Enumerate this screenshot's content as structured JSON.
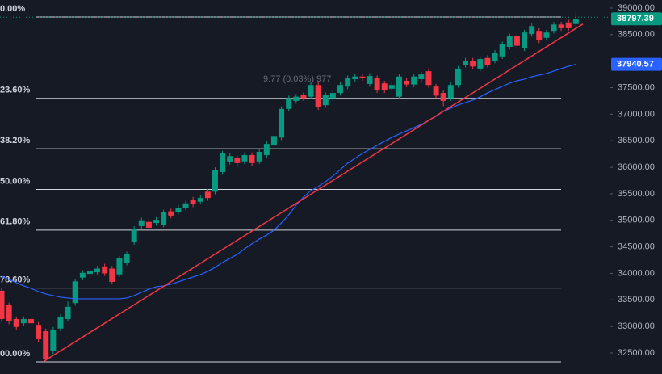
{
  "chart_data": {
    "type": "candlestick",
    "colors": {
      "up": "#089981",
      "down": "#f23645",
      "ma": "#2962ff",
      "trend": "#f23645",
      "fib": "#d1d4dc"
    },
    "ylim": [
      32104,
      39152
    ],
    "yticks": [
      {
        "value": 39000,
        "label": "39000.00"
      },
      {
        "value": 38500,
        "label": "38500.00"
      },
      {
        "value": 37500,
        "label": "37500.00"
      },
      {
        "value": 37000,
        "label": "37000.00"
      },
      {
        "value": 36500,
        "label": "36500.00"
      },
      {
        "value": 36000,
        "label": "36000.00"
      },
      {
        "value": 35500,
        "label": "35500.00"
      },
      {
        "value": 35000,
        "label": "35000.00"
      },
      {
        "value": 34500,
        "label": "34500.00"
      },
      {
        "value": 34000,
        "label": "34000.00"
      },
      {
        "value": 33500,
        "label": "33500.00"
      },
      {
        "value": 33000,
        "label": "33000.00"
      },
      {
        "value": 32500,
        "label": "32500.00"
      }
    ],
    "open": [
      33673,
      33400,
      33140,
      33060,
      33140,
      33030,
      32910,
      32530,
      32960,
      33140,
      33440,
      33920,
      33990,
      34020,
      34130,
      34090,
      33980,
      34200,
      34590,
      34890,
      34970,
      34950,
      34920,
      35170,
      35160,
      35240,
      35390,
      35350,
      35540,
      35540,
      35910,
      36100,
      36170,
      36110,
      36230,
      36110,
      36230,
      36410,
      36560,
      37100,
      37250,
      37360,
      37330,
      37550,
      37170,
      37300,
      37400,
      37520,
      37660,
      37710,
      37570,
      37680,
      37580,
      37480,
      37330,
      37630,
      37560,
      37660,
      37810,
      37520,
      37400,
      37300,
      37550,
      37930,
      38010,
      37860,
      38060,
      38010,
      38090,
      38270,
      38470,
      38240,
      38510,
      38570,
      38440,
      38570,
      38690,
      38730,
      38700
    ],
    "high": [
      33730,
      33450,
      33190,
      33190,
      33190,
      33080,
      32960,
      32990,
      33230,
      33470,
      33900,
      34060,
      34100,
      34140,
      34180,
      34140,
      34330,
      34410,
      34890,
      35050,
      35020,
      35060,
      35200,
      35220,
      35290,
      35370,
      35440,
      35470,
      35590,
      36000,
      36310,
      36260,
      36220,
      36280,
      36280,
      36340,
      36490,
      36640,
      37150,
      37350,
      37380,
      37410,
      37600,
      37600,
      37410,
      37450,
      37600,
      37730,
      37760,
      37760,
      37770,
      37730,
      37630,
      37600,
      37760,
      37680,
      37760,
      37800,
      37860,
      37570,
      37450,
      37600,
      37910,
      38060,
      38060,
      38090,
      38110,
      38210,
      38370,
      38520,
      38520,
      38590,
      38710,
      38620,
      38590,
      38740,
      38740,
      38780,
      38920
    ],
    "low": [
      33090,
      33040,
      32940,
      33010,
      33010,
      32710,
      32330,
      32480,
      32910,
      33090,
      33390,
      33870,
      33940,
      33970,
      33950,
      33790,
      33930,
      34150,
      34540,
      34840,
      34810,
      34900,
      34870,
      35040,
      35110,
      35190,
      35250,
      35300,
      35370,
      35490,
      35860,
      36050,
      36030,
      36060,
      36030,
      36060,
      36180,
      36360,
      36510,
      37050,
      37200,
      37250,
      37280,
      37080,
      37120,
      37250,
      37350,
      37470,
      37610,
      37630,
      37520,
      37400,
      37400,
      37430,
      37280,
      37510,
      37510,
      37610,
      37500,
      37300,
      37150,
      37250,
      37500,
      37880,
      37850,
      37810,
      37880,
      37960,
      38040,
      38220,
      38240,
      38190,
      38460,
      38340,
      38390,
      38520,
      38570,
      38570,
      38650
    ],
    "close": [
      33140,
      33095,
      32990,
      33140,
      33060,
      32760,
      32380,
      32940,
      33180,
      33370,
      33850,
      34010,
      34050,
      34090,
      34000,
      33840,
      34280,
      34360,
      34840,
      35000,
      34860,
      35010,
      35150,
      35090,
      35240,
      35320,
      35300,
      35420,
      35420,
      35950,
      36260,
      36210,
      36080,
      36230,
      36080,
      36290,
      36440,
      36590,
      37100,
      37300,
      37330,
      37300,
      37550,
      37130,
      37360,
      37400,
      37550,
      37680,
      37710,
      37680,
      37720,
      37450,
      37450,
      37550,
      37710,
      37560,
      37710,
      37750,
      37550,
      37350,
      37250,
      37550,
      37860,
      38010,
      37900,
      38040,
      37930,
      38160,
      38320,
      38470,
      38290,
      38540,
      38660,
      38390,
      38540,
      38690,
      38620,
      38620,
      38797.39
    ],
    "moving_average": [
      33947,
      33886,
      33825,
      33764,
      33719,
      33658,
      33612,
      33582,
      33551,
      33536,
      33521,
      33521,
      33521,
      33521,
      33521,
      33521,
      33521,
      33536,
      33582,
      33643,
      33703,
      33749,
      33764,
      33795,
      33840,
      33886,
      33932,
      33977,
      34038,
      34114,
      34206,
      34282,
      34358,
      34464,
      34556,
      34647,
      34723,
      34814,
      34951,
      35104,
      35286,
      35439,
      35560,
      35636,
      35728,
      35834,
      35956,
      36078,
      36169,
      36260,
      36336,
      36413,
      36489,
      36565,
      36626,
      36687,
      36747,
      36808,
      36884,
      36961,
      37052,
      37113,
      37174,
      37219,
      37265,
      37326,
      37402,
      37463,
      37524,
      37585,
      37630,
      37661,
      37706,
      37737,
      37767,
      37813,
      37858,
      37904,
      37940.57
    ],
    "trend_line": [
      32350,
      38700
    ],
    "fib_levels": [
      {
        "label": "0.00%",
        "value": 38833
      },
      {
        "label": "23.60%",
        "value": 37299
      },
      {
        "label": "38.20%",
        "value": 36350
      },
      {
        "label": "50.00%",
        "value": 35583
      },
      {
        "label": "61.80%",
        "value": 34816
      },
      {
        "label": "78.60%",
        "value": 33724
      },
      {
        "label": "00.00%",
        "value": 32333
      }
    ],
    "price_tags": [
      {
        "value": 38797.39,
        "color": "#089981"
      },
      {
        "value": 37940.57,
        "color": "#2962ff"
      }
    ],
    "annotation": "9.77 (0.03%) 977"
  }
}
